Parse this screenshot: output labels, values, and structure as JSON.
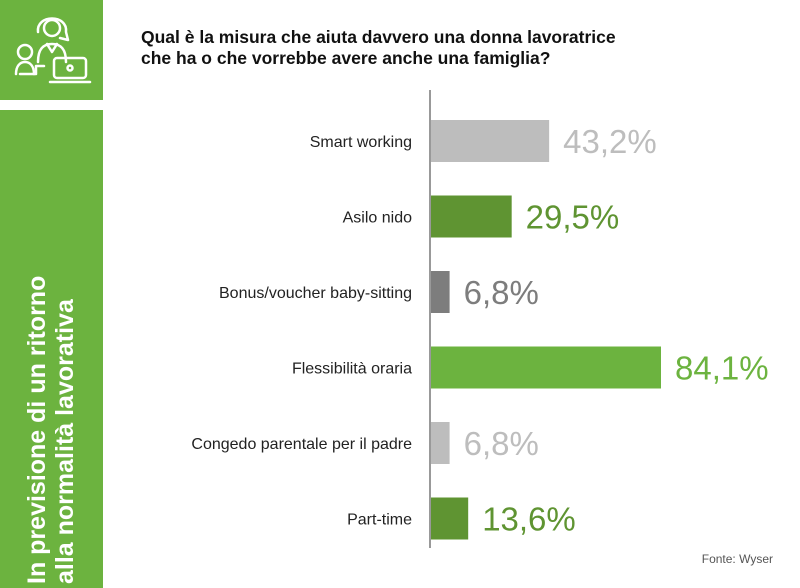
{
  "sidebar": {
    "icon": "woman-child-laptop-icon",
    "lines": [
      "In previsione di un ritorno",
      "alla normalità lavorativa"
    ],
    "color": "#6cb33f"
  },
  "question": {
    "lines": [
      "Qual è la misura che aiuta davvero una donna lavoratrice",
      "che ha o che vorrebbe avere anche una famiglia?"
    ]
  },
  "source": "Fonte: Wyser",
  "chart_data": {
    "type": "bar",
    "orientation": "horizontal",
    "categories": [
      "Smart working",
      "Asilo nido",
      "Bonus/voucher baby-sitting",
      "Flessibilità oraria",
      "Congedo parentale per il padre",
      "Part-time"
    ],
    "values": [
      43.2,
      29.5,
      6.8,
      84.1,
      6.8,
      13.6
    ],
    "value_labels": [
      "43,2%",
      "29,5%",
      "6,8%",
      "84,1%",
      "6,8%",
      "13,6%"
    ],
    "bar_colors": [
      "#bdbdbd",
      "#5f9432",
      "#7d7d7d",
      "#6cb33f",
      "#bdbdbd",
      "#5f9432"
    ],
    "label_colors": [
      "#bdbdbd",
      "#5f9432",
      "#7d7d7d",
      "#6cb33f",
      "#bdbdbd",
      "#5f9432"
    ],
    "xlim": [
      0,
      84.1
    ],
    "grid": false,
    "legend": "none"
  }
}
